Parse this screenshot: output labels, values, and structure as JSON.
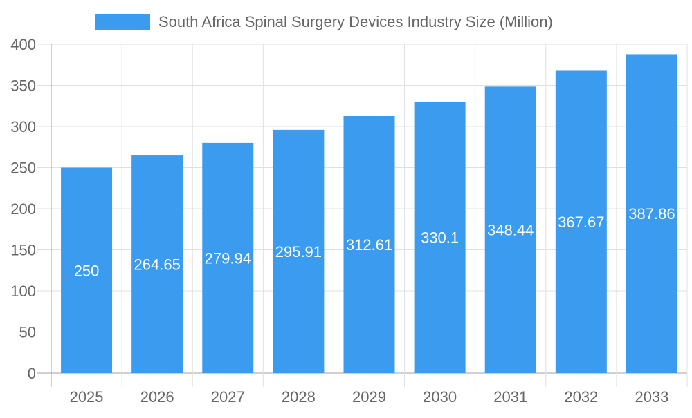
{
  "chart_data": {
    "type": "bar",
    "title": "",
    "xlabel": "",
    "ylabel": "",
    "legend": {
      "placement": "top",
      "entries": [
        "South Africa Spinal Surgery Devices Industry Size (Million)"
      ]
    },
    "categories": [
      "2025",
      "2026",
      "2027",
      "2028",
      "2029",
      "2030",
      "2031",
      "2032",
      "2033"
    ],
    "series": [
      {
        "name": "South Africa Spinal Surgery Devices Industry Size (Million)",
        "values": [
          250,
          264.65,
          279.94,
          295.91,
          312.61,
          330.1,
          348.44,
          367.67,
          387.86
        ],
        "data_labels": [
          "250",
          "264.65",
          "279.94",
          "295.91",
          "312.61",
          "330.1",
          "348.44",
          "367.67",
          "387.86"
        ]
      }
    ],
    "ylim": [
      0,
      400
    ],
    "yticks": [
      "0",
      "50",
      "100",
      "150",
      "200",
      "250",
      "300",
      "350",
      "400"
    ],
    "grid": true,
    "colors": {
      "bar": "#3a9bef",
      "grid": "#e0e0e0",
      "axis": "#a0a0a0",
      "text": "#666666",
      "label": "#ffffff"
    }
  }
}
